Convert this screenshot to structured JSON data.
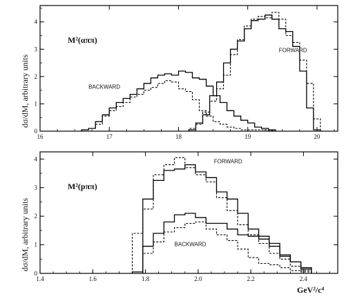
{
  "figure": {
    "y_label": "dσ/dM, arbitrary units",
    "x_unit_label": "GeV²/c⁴"
  },
  "chart_data": [
    {
      "type": "histogram",
      "title": "M²(αππ)",
      "xlim": [
        16,
        20.3
      ],
      "ylim": [
        0,
        4.6
      ],
      "x_ticks": [
        16,
        17,
        18,
        19,
        20
      ],
      "y_ticks": [
        0,
        1,
        2,
        3,
        4
      ],
      "annotations": [
        {
          "text": "BACKWARD",
          "x": 16.7,
          "y": 1.55
        },
        {
          "text": "FORWARD",
          "x": 19.45,
          "y": 2.9
        }
      ],
      "series": [
        {
          "style": "solid",
          "edges": [
            16.6,
            16.7,
            16.8,
            16.9,
            17.0,
            17.1,
            17.2,
            17.3,
            17.4,
            17.5,
            17.6,
            17.7,
            17.8,
            17.9,
            18.0,
            18.1,
            18.2,
            18.3,
            18.4,
            18.5,
            18.6,
            18.7,
            18.8,
            18.9,
            19.0,
            19.1,
            19.2,
            19.3,
            19.4
          ],
          "values": [
            0.05,
            0.1,
            0.35,
            0.6,
            0.85,
            1.05,
            1.2,
            1.35,
            1.55,
            1.75,
            1.95,
            2.05,
            2.1,
            2.05,
            2.2,
            2.15,
            1.95,
            1.9,
            1.65,
            1.3,
            1.05,
            0.75,
            0.55,
            0.4,
            0.3,
            0.15,
            0.1,
            0.05
          ]
        },
        {
          "style": "dashed",
          "edges": [
            16.6,
            16.7,
            16.8,
            16.9,
            17.0,
            17.1,
            17.2,
            17.3,
            17.4,
            17.5,
            17.6,
            17.7,
            17.8,
            17.9,
            18.0,
            18.1,
            18.2,
            18.3,
            18.4,
            18.5,
            18.6,
            18.7,
            18.8,
            18.9,
            19.0,
            19.1,
            19.2,
            19.3,
            19.4
          ],
          "values": [
            0.05,
            0.1,
            0.25,
            0.55,
            0.75,
            0.9,
            1.05,
            1.25,
            1.35,
            1.5,
            1.6,
            1.75,
            1.85,
            1.8,
            1.55,
            1.45,
            1.15,
            0.75,
            0.55,
            0.35,
            0.25,
            0.15,
            0.1,
            0.05,
            0.05,
            0.05,
            0.05,
            0.02
          ]
        },
        {
          "style": "solid",
          "edges": [
            18.15,
            18.25,
            18.35,
            18.45,
            18.55,
            18.65,
            18.75,
            18.85,
            18.95,
            19.05,
            19.15,
            19.25,
            19.35,
            19.45,
            19.55,
            19.65,
            19.75,
            19.85,
            19.95,
            20.05
          ],
          "values": [
            0.05,
            0.3,
            0.6,
            1.3,
            1.8,
            2.5,
            3.0,
            3.3,
            3.75,
            4.05,
            4.1,
            4.25,
            4.1,
            3.75,
            3.65,
            3.1,
            2.2,
            0.85,
            0.05
          ]
        },
        {
          "style": "dashed",
          "edges": [
            18.15,
            18.25,
            18.35,
            18.45,
            18.55,
            18.65,
            18.75,
            18.85,
            18.95,
            19.05,
            19.15,
            19.25,
            19.35,
            19.45,
            19.55,
            19.65,
            19.75,
            19.85,
            19.95,
            20.05
          ],
          "values": [
            0.1,
            0.25,
            0.7,
            1.1,
            1.55,
            2.05,
            2.8,
            3.35,
            3.85,
            4.1,
            4.2,
            4.15,
            4.35,
            4.1,
            3.5,
            3.25,
            2.6,
            1.75,
            0.45
          ]
        }
      ]
    },
    {
      "type": "histogram",
      "title": "M²(pππ)",
      "xlim": [
        1.4,
        2.53
      ],
      "ylim": [
        0,
        4.25
      ],
      "x_ticks": [
        1.4,
        1.6,
        1.8,
        2.0,
        2.2,
        2.4
      ],
      "y_ticks": [
        0,
        1,
        2,
        3,
        4
      ],
      "annotations": [
        {
          "text": "FORWARD",
          "x": 2.06,
          "y": 3.85
        },
        {
          "text": "BACKWARD",
          "x": 1.91,
          "y": 0.95
        }
      ],
      "series": [
        {
          "style": "solid",
          "edges": [
            1.75,
            1.79,
            1.83,
            1.87,
            1.91,
            1.95,
            1.99,
            2.03,
            2.07,
            2.11,
            2.15,
            2.19,
            2.23,
            2.27,
            2.31,
            2.35,
            2.39,
            2.43
          ],
          "values": [
            0.05,
            2.6,
            3.25,
            3.6,
            3.65,
            3.8,
            3.55,
            3.35,
            2.85,
            2.6,
            2.1,
            1.55,
            1.3,
            0.95,
            0.65,
            0.4,
            0.2
          ]
        },
        {
          "style": "dashed",
          "edges": [
            1.75,
            1.79,
            1.83,
            1.87,
            1.91,
            1.95,
            1.99,
            2.03,
            2.07,
            2.11,
            2.15,
            2.19,
            2.23,
            2.27,
            2.31,
            2.35,
            2.39,
            2.43
          ],
          "values": [
            1.4,
            2.25,
            3.45,
            3.8,
            4.05,
            3.7,
            3.45,
            3.2,
            2.65,
            2.2,
            1.7,
            1.35,
            1.05,
            0.7,
            0.5,
            0.25,
            0.1
          ]
        },
        {
          "style": "solid",
          "edges": [
            1.79,
            1.83,
            1.87,
            1.91,
            1.95,
            1.99,
            2.03,
            2.07,
            2.11,
            2.15,
            2.19,
            2.23,
            2.27,
            2.31,
            2.35,
            2.39,
            2.43
          ],
          "values": [
            0.95,
            1.4,
            1.8,
            2.05,
            2.1,
            1.95,
            1.75,
            1.75,
            1.55,
            1.35,
            1.3,
            1.2,
            1.05,
            0.6,
            0.4,
            0.15
          ]
        },
        {
          "style": "dashed",
          "edges": [
            1.79,
            1.83,
            1.87,
            1.91,
            1.95,
            1.99,
            2.03,
            2.07,
            2.11,
            2.15,
            2.19,
            2.23,
            2.27,
            2.31,
            2.35,
            2.39,
            2.43
          ],
          "values": [
            0.7,
            1.1,
            1.45,
            1.6,
            1.75,
            1.8,
            1.55,
            1.35,
            1.15,
            0.85,
            0.55,
            0.35,
            0.3,
            0.2,
            0.1,
            0.05
          ]
        }
      ]
    }
  ]
}
